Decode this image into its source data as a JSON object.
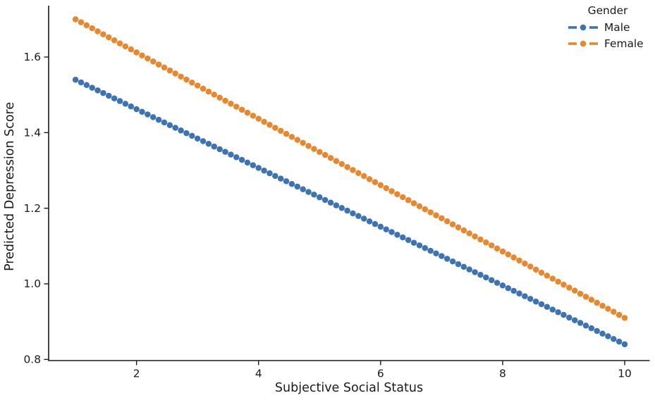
{
  "chart_data": {
    "type": "line",
    "title": "",
    "xlabel": "Subjective Social Status",
    "ylabel": "Predicted Depression Score",
    "xlim": [
      0.56,
      10.41
    ],
    "ylim": [
      0.797,
      1.736
    ],
    "xticks": [
      2,
      4,
      6,
      8,
      10
    ],
    "xtick_labels": [
      "2",
      "4",
      "6",
      "8",
      "10"
    ],
    "yticks": [
      0.8,
      1.0,
      1.2,
      1.4,
      1.6
    ],
    "ytick_labels": [
      "0.8",
      "1.0",
      "1.2",
      "1.4",
      "1.6"
    ],
    "grid": false,
    "spines": [
      "left",
      "bottom"
    ],
    "axis_color": "#1a1a1a",
    "legend": {
      "title": "Gender",
      "position": "upper right",
      "frame": false
    },
    "marker": "circle",
    "line_style": "dashed-with-markers",
    "n_points_per_series": 100,
    "series": [
      {
        "name": "Male",
        "color": "#3C73B3",
        "x_start": 1,
        "x_end": 10,
        "y_start": 1.54,
        "y_end": 0.84,
        "values_at_integer_x": [
          1.54,
          1.46,
          1.38,
          1.31,
          1.23,
          1.15,
          1.07,
          1.0,
          0.92,
          0.84
        ]
      },
      {
        "name": "Female",
        "color": "#E8872E",
        "x_start": 1,
        "x_end": 10,
        "y_start": 1.7,
        "y_end": 0.91,
        "values_at_integer_x": [
          1.7,
          1.61,
          1.52,
          1.44,
          1.35,
          1.26,
          1.17,
          1.09,
          1.0,
          0.91
        ]
      }
    ]
  }
}
